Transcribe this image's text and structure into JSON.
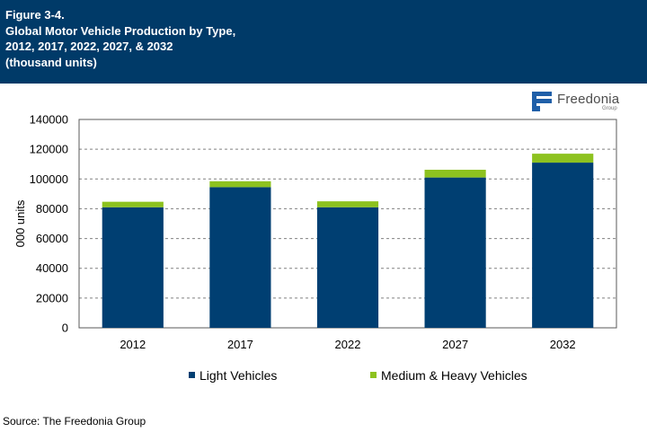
{
  "header": {
    "figure_label": "Figure 3-4.",
    "title_line1": "Global Motor Vehicle Production by Type,",
    "title_line2": "2012, 2017, 2022, 2027, & 2032",
    "title_line3": "(thousand units)"
  },
  "logo": {
    "name": "Freedonia",
    "sub": "Group"
  },
  "source": "Source: The Freedonia Group",
  "colors": {
    "header_bg": "#003a68",
    "light": "#003f72",
    "medium_heavy": "#8dc21f"
  },
  "chart_data": {
    "type": "bar",
    "stacked": true,
    "categories": [
      "2012",
      "2017",
      "2022",
      "2027",
      "2032"
    ],
    "series": [
      {
        "name": "Light Vehicles",
        "values": [
          81000,
          94500,
          81000,
          101000,
          111000
        ],
        "color": "#003f72"
      },
      {
        "name": "Medium & Heavy Vehicles",
        "values": [
          3700,
          4000,
          4000,
          5200,
          6000
        ],
        "color": "#8dc21f"
      }
    ],
    "ylabel": "000 units",
    "ylim": [
      0,
      140000
    ],
    "yticks": [
      "0",
      "20000",
      "40000",
      "60000",
      "80000",
      "100000",
      "120000",
      "140000"
    ],
    "grid": true,
    "legend": "bottom"
  }
}
